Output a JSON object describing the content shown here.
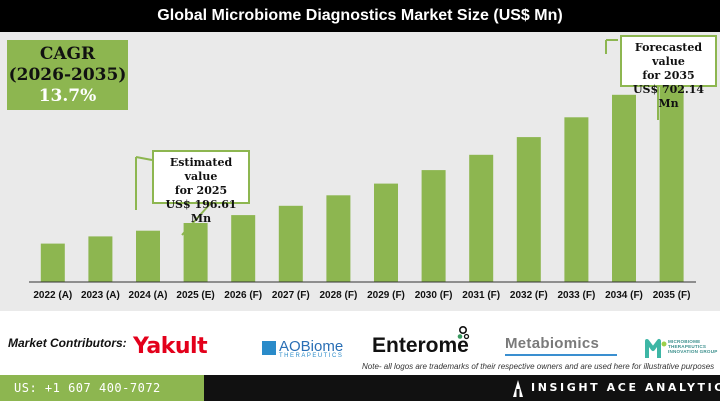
{
  "title": "Global Microbiome Diagnostics Market Size (US$ Mn)",
  "cagr": {
    "label": "CAGR",
    "period": "(2026-2035)",
    "value": "13.7%"
  },
  "callouts": {
    "estimated": {
      "line1": "Estimated value",
      "line2": "for 2025",
      "line3": "US$ 196.61 Mn"
    },
    "forecasted": {
      "line1": "Forecasted value",
      "line2": "for 2035",
      "line3": "US$ 702.14 Mn"
    }
  },
  "chart_data": {
    "type": "bar",
    "categories": [
      "2022 (A)",
      "2023 (A)",
      "2024 (A)",
      "2025 (E)",
      "2026 (F)",
      "2027 (F)",
      "2028 (F)",
      "2029 (F)",
      "2030 (F)",
      "2031 (F)",
      "2032 (F)",
      "2033 (F)",
      "2034 (F)",
      "2035 (F)"
    ],
    "values": [
      128,
      152,
      171,
      196.61,
      223,
      254,
      289,
      328,
      373,
      424,
      483,
      549,
      624,
      702.14
    ],
    "title": "Global Microbiome Diagnostics Market Size (US$ Mn)",
    "xlabel": "",
    "ylabel": "",
    "ylim": [
      0,
      750
    ],
    "grid": false,
    "bar_color": "#8db650"
  },
  "contributors": {
    "label": "Market Contributors:",
    "logos": {
      "yakult": "Yakult",
      "aobiome_name": "AOBiome",
      "aobiome_sub": "THERAPEUTICS",
      "enterome": "Enterome",
      "metabiomics": "Metabiomics",
      "mtig": "MICROBIOME THERAPEUTICS INNOVATION GROUP"
    },
    "note": "Note- all logos are trademarks of their respective owners and are used here for illustrative purposes"
  },
  "footer": {
    "phone": "US: +1 607 400-7072",
    "brand": "INSIGHT ACE ANALYTIC"
  },
  "colors": {
    "accent": "#8db650",
    "dark": "#111111",
    "panel": "#eaeaea"
  }
}
